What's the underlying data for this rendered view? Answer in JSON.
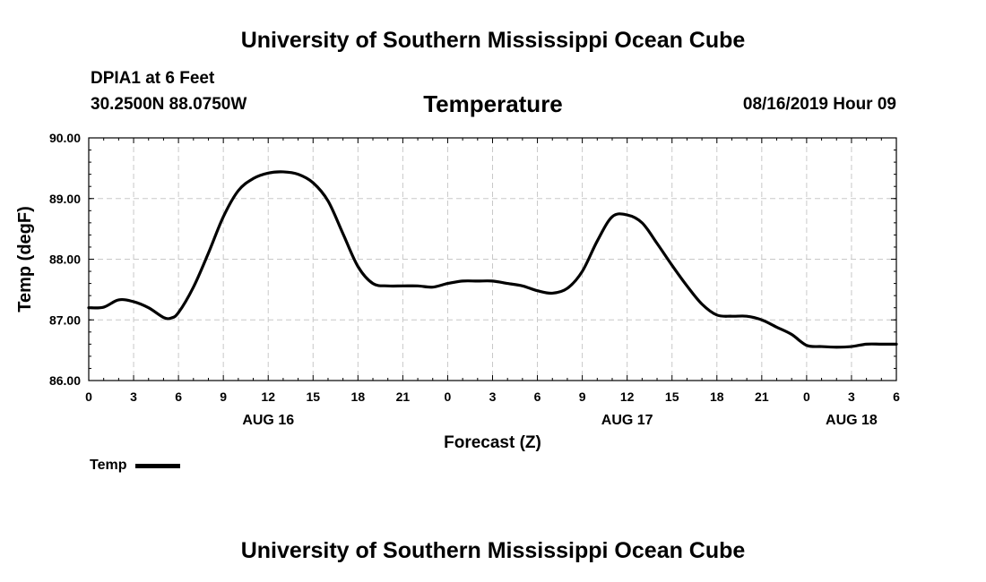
{
  "header": {
    "top_title": "University of Southern Mississippi Ocean Cube",
    "bottom_title": "University of Southern Mississippi Ocean Cube",
    "station": "DPIA1 at 6 Feet",
    "coords": "30.2500N 88.0750W",
    "datetime": "08/16/2019 Hour 09"
  },
  "legend": {
    "label": "Temp"
  },
  "chart_data": {
    "type": "line",
    "title": "Temperature",
    "xlabel": "Forecast (Z)",
    "ylabel": "Temp (degF)",
    "ylim": [
      86.0,
      90.0
    ],
    "xlim": [
      0,
      54
    ],
    "grid": true,
    "y_ticks": [
      "86.00",
      "87.00",
      "88.00",
      "89.00",
      "90.00"
    ],
    "x_tick_labels": [
      "0",
      "3",
      "6",
      "9",
      "12",
      "15",
      "18",
      "21",
      "0",
      "3",
      "6",
      "9",
      "12",
      "15",
      "18",
      "21",
      "0",
      "3",
      "6"
    ],
    "date_labels": [
      {
        "label": "AUG 16",
        "hour": 12
      },
      {
        "label": "AUG 17",
        "hour": 36
      },
      {
        "label": "AUG 18",
        "hour": 51
      }
    ],
    "series": [
      {
        "name": "Temp",
        "x": [
          0,
          1,
          2,
          3,
          4,
          5,
          5.5,
          6,
          7,
          8,
          9,
          10,
          11,
          12,
          13,
          14,
          15,
          16,
          17,
          18,
          19,
          20,
          21,
          22,
          23,
          24,
          25,
          26,
          27,
          28,
          29,
          30,
          31,
          32,
          33,
          34,
          35,
          36,
          37,
          38,
          39,
          40,
          41,
          42,
          43,
          44,
          45,
          46,
          47,
          48,
          49,
          50,
          51,
          52,
          53,
          54
        ],
        "values": [
          87.2,
          87.21,
          87.33,
          87.3,
          87.2,
          87.04,
          87.03,
          87.12,
          87.54,
          88.1,
          88.7,
          89.13,
          89.33,
          89.42,
          89.44,
          89.4,
          89.26,
          88.96,
          88.42,
          87.88,
          87.6,
          87.56,
          87.56,
          87.56,
          87.54,
          87.6,
          87.64,
          87.64,
          87.64,
          87.6,
          87.56,
          87.48,
          87.44,
          87.52,
          87.8,
          88.3,
          88.7,
          88.73,
          88.6,
          88.26,
          87.9,
          87.56,
          87.26,
          87.08,
          87.06,
          87.06,
          87.0,
          86.88,
          86.76,
          86.58,
          86.56,
          86.55,
          86.56,
          86.6,
          86.6,
          86.6
        ]
      }
    ]
  }
}
